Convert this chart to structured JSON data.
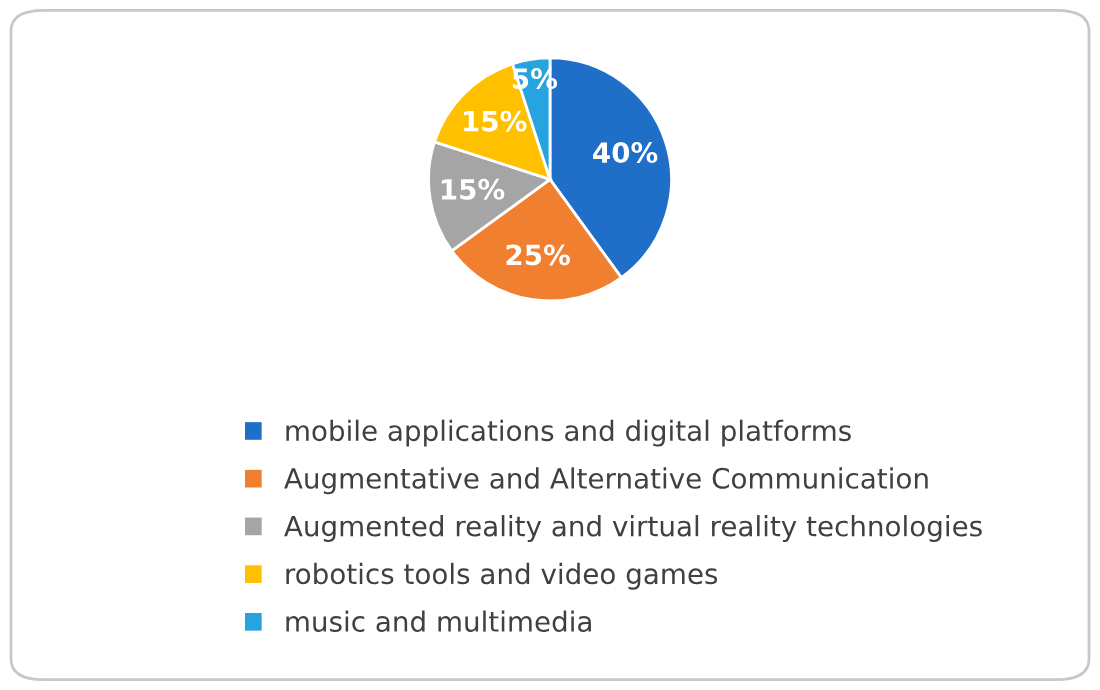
{
  "chart_data": {
    "type": "pie",
    "categories": [
      "mobile applications and digital platforms",
      "Augmentative and Alternative Communication",
      "Augmented reality and virtual reality technologies",
      "robotics tools and video games",
      "music and multimedia"
    ],
    "values": [
      40,
      25,
      15,
      15,
      5
    ],
    "colors": [
      "#1f6fc8",
      "#f07f2f",
      "#a5a5a5",
      "#ffc000",
      "#27a3df"
    ],
    "value_labels": [
      "40%",
      "25%",
      "15%",
      "15%",
      "5%"
    ],
    "legend": "bottom"
  }
}
